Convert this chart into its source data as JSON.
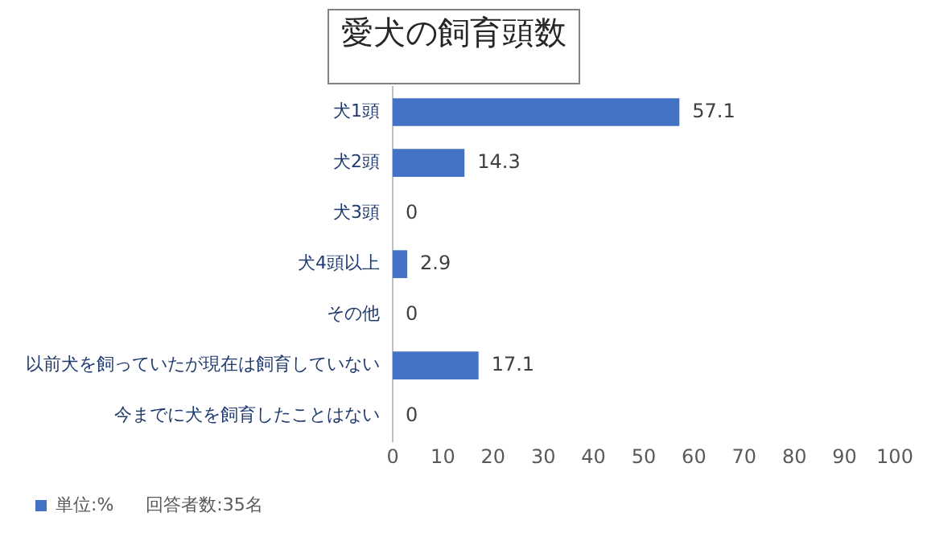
{
  "chart_data": {
    "type": "bar",
    "orientation": "horizontal",
    "title": "愛犬の飼育頭数",
    "categories": [
      "犬1頭",
      "犬2頭",
      "犬3頭",
      "犬4頭以上",
      "その他",
      "以前犬を飼っていたが現在は飼育していない",
      "今までに犬を飼育したことはない"
    ],
    "series": [
      {
        "name": "単位:%",
        "color": "#4472c4",
        "values": [
          57.1,
          14.3,
          0,
          2.9,
          0,
          17.1,
          0
        ]
      }
    ],
    "xlim": [
      0,
      100
    ],
    "xticks": [
      0,
      10,
      20,
      30,
      40,
      50,
      60,
      70,
      80,
      90,
      100
    ],
    "grid": false,
    "legend": "bottom left",
    "data_labels": true,
    "annotations": [
      "回答者数:35名"
    ]
  }
}
